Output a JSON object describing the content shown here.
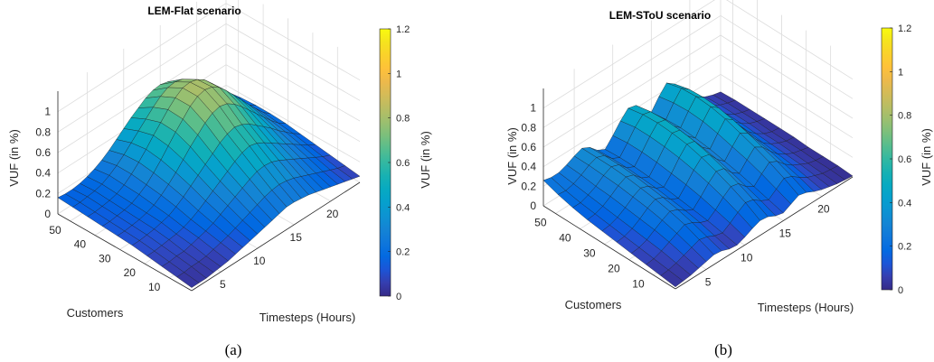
{
  "panels": [
    {
      "id": "a",
      "caption": "(a)",
      "title": "LEM-Flat scenario",
      "zlabel": "VUF (in %)",
      "xlabel": "Customers",
      "ylabel": "Timesteps (Hours)",
      "colorbar_label": "VUF (in %)",
      "z_ticks": [
        "0",
        "0.2",
        "0.4",
        "0.6",
        "0.8",
        "1"
      ],
      "customer_ticks": [
        "50",
        "40",
        "30",
        "20",
        "10"
      ],
      "hour_ticks": [
        "5",
        "10",
        "15",
        "20"
      ],
      "colorbar_ticks": [
        "0",
        "0.2",
        "0.4",
        "0.6",
        "0.8",
        "1",
        "1.2"
      ]
    },
    {
      "id": "b",
      "caption": "(b)",
      "title": "LEM-SToU scenario",
      "zlabel": "VUF (in %)",
      "xlabel": "Customers",
      "ylabel": "Timesteps (Hours)",
      "colorbar_label": "VUF (in %)",
      "z_ticks": [
        "0",
        "0.2",
        "0.4",
        "0.6",
        "0.8",
        "1"
      ],
      "customer_ticks": [
        "50",
        "40",
        "30",
        "20",
        "10"
      ],
      "hour_ticks": [
        "5",
        "10",
        "15",
        "20"
      ],
      "colorbar_ticks": [
        "0",
        "0.2",
        "0.4",
        "0.6",
        "0.8",
        "1",
        "1.2"
      ]
    }
  ],
  "chart_data": [
    {
      "type": "surface",
      "title": "LEM-Flat scenario",
      "xlabel": "Customers",
      "ylabel": "Timesteps (Hours)",
      "zlabel": "VUF (in %)",
      "customers_range": [
        1,
        55
      ],
      "hours_range": [
        1,
        24
      ],
      "zlim": [
        0,
        1.2
      ],
      "colormap": "parula",
      "colorbar_range": [
        0,
        1.2
      ],
      "hours": [
        1,
        2,
        3,
        4,
        5,
        6,
        7,
        8,
        9,
        10,
        11,
        12,
        13,
        14,
        15,
        16,
        17,
        18,
        19,
        20,
        21,
        22,
        23,
        24
      ],
      "customers": [
        1,
        7,
        13,
        19,
        25,
        31,
        37,
        43,
        49,
        55
      ],
      "vuf": [
        [
          0.03,
          0.03,
          0.03,
          0.04,
          0.05,
          0.06,
          0.08,
          0.1,
          0.12,
          0.14,
          0.16,
          0.18,
          0.2,
          0.22,
          0.22,
          0.21,
          0.2,
          0.18,
          0.16,
          0.14,
          0.12,
          0.1,
          0.08,
          0.06
        ],
        [
          0.05,
          0.05,
          0.06,
          0.06,
          0.07,
          0.09,
          0.11,
          0.13,
          0.16,
          0.19,
          0.22,
          0.25,
          0.28,
          0.3,
          0.31,
          0.3,
          0.28,
          0.25,
          0.22,
          0.19,
          0.16,
          0.13,
          0.1,
          0.08
        ],
        [
          0.07,
          0.07,
          0.08,
          0.08,
          0.1,
          0.12,
          0.14,
          0.17,
          0.21,
          0.25,
          0.29,
          0.33,
          0.37,
          0.4,
          0.41,
          0.4,
          0.37,
          0.33,
          0.29,
          0.25,
          0.21,
          0.17,
          0.13,
          0.1
        ],
        [
          0.09,
          0.09,
          0.1,
          0.11,
          0.12,
          0.14,
          0.17,
          0.21,
          0.26,
          0.31,
          0.36,
          0.41,
          0.46,
          0.5,
          0.52,
          0.5,
          0.46,
          0.41,
          0.36,
          0.31,
          0.26,
          0.21,
          0.16,
          0.12
        ],
        [
          0.11,
          0.11,
          0.12,
          0.13,
          0.15,
          0.17,
          0.21,
          0.26,
          0.32,
          0.38,
          0.44,
          0.5,
          0.56,
          0.6,
          0.62,
          0.6,
          0.56,
          0.5,
          0.44,
          0.38,
          0.31,
          0.25,
          0.19,
          0.14
        ],
        [
          0.12,
          0.12,
          0.13,
          0.14,
          0.16,
          0.19,
          0.24,
          0.3,
          0.37,
          0.45,
          0.53,
          0.6,
          0.67,
          0.72,
          0.74,
          0.72,
          0.67,
          0.6,
          0.52,
          0.44,
          0.36,
          0.28,
          0.21,
          0.16
        ],
        [
          0.13,
          0.13,
          0.14,
          0.15,
          0.17,
          0.21,
          0.26,
          0.33,
          0.41,
          0.5,
          0.59,
          0.67,
          0.75,
          0.8,
          0.82,
          0.8,
          0.75,
          0.67,
          0.58,
          0.49,
          0.4,
          0.31,
          0.23,
          0.17
        ],
        [
          0.14,
          0.14,
          0.15,
          0.16,
          0.18,
          0.22,
          0.28,
          0.35,
          0.43,
          0.52,
          0.6,
          0.68,
          0.75,
          0.8,
          0.81,
          0.79,
          0.74,
          0.66,
          0.57,
          0.48,
          0.39,
          0.3,
          0.22,
          0.17
        ],
        [
          0.15,
          0.15,
          0.16,
          0.17,
          0.19,
          0.23,
          0.28,
          0.34,
          0.41,
          0.48,
          0.55,
          0.62,
          0.68,
          0.72,
          0.73,
          0.71,
          0.66,
          0.59,
          0.51,
          0.43,
          0.35,
          0.27,
          0.2,
          0.16
        ],
        [
          0.16,
          0.15,
          0.15,
          0.16,
          0.18,
          0.21,
          0.25,
          0.3,
          0.36,
          0.42,
          0.48,
          0.53,
          0.58,
          0.61,
          0.62,
          0.6,
          0.56,
          0.5,
          0.43,
          0.36,
          0.29,
          0.23,
          0.18,
          0.14
        ]
      ]
    },
    {
      "type": "surface",
      "title": "LEM-SToU scenario",
      "xlabel": "Customers",
      "ylabel": "Timesteps (Hours)",
      "zlabel": "VUF (in %)",
      "customers_range": [
        1,
        55
      ],
      "hours_range": [
        1,
        24
      ],
      "zlim": [
        0,
        1.2
      ],
      "colormap": "parula",
      "colorbar_range": [
        0,
        1.2
      ],
      "hours": [
        1,
        2,
        3,
        4,
        5,
        6,
        7,
        8,
        9,
        10,
        11,
        12,
        13,
        14,
        15,
        16,
        17,
        18,
        19,
        20,
        21,
        22,
        23,
        24
      ],
      "customers": [
        1,
        7,
        13,
        19,
        25,
        31,
        37,
        43,
        49,
        55
      ],
      "vuf": [
        [
          0.02,
          0.03,
          0.04,
          0.06,
          0.08,
          0.1,
          0.09,
          0.06,
          0.05,
          0.08,
          0.12,
          0.15,
          0.14,
          0.1,
          0.08,
          0.12,
          0.16,
          0.14,
          0.1,
          0.07,
          0.05,
          0.03,
          0.02,
          0.01
        ],
        [
          0.04,
          0.05,
          0.07,
          0.1,
          0.13,
          0.16,
          0.14,
          0.1,
          0.08,
          0.13,
          0.19,
          0.24,
          0.22,
          0.16,
          0.12,
          0.18,
          0.24,
          0.21,
          0.15,
          0.1,
          0.07,
          0.04,
          0.03,
          0.02
        ],
        [
          0.06,
          0.07,
          0.1,
          0.14,
          0.18,
          0.22,
          0.19,
          0.14,
          0.11,
          0.17,
          0.25,
          0.31,
          0.29,
          0.21,
          0.16,
          0.24,
          0.31,
          0.27,
          0.19,
          0.13,
          0.09,
          0.05,
          0.03,
          0.02
        ],
        [
          0.08,
          0.09,
          0.12,
          0.17,
          0.22,
          0.26,
          0.23,
          0.17,
          0.13,
          0.21,
          0.3,
          0.37,
          0.35,
          0.26,
          0.2,
          0.29,
          0.37,
          0.32,
          0.23,
          0.15,
          0.1,
          0.06,
          0.04,
          0.02
        ],
        [
          0.1,
          0.11,
          0.14,
          0.19,
          0.25,
          0.29,
          0.26,
          0.19,
          0.15,
          0.24,
          0.34,
          0.42,
          0.4,
          0.3,
          0.23,
          0.33,
          0.42,
          0.37,
          0.26,
          0.17,
          0.11,
          0.07,
          0.04,
          0.03
        ],
        [
          0.12,
          0.13,
          0.16,
          0.21,
          0.27,
          0.31,
          0.28,
          0.21,
          0.17,
          0.26,
          0.37,
          0.46,
          0.44,
          0.33,
          0.26,
          0.37,
          0.47,
          0.41,
          0.29,
          0.19,
          0.12,
          0.07,
          0.04,
          0.03
        ],
        [
          0.14,
          0.15,
          0.18,
          0.23,
          0.29,
          0.33,
          0.3,
          0.22,
          0.18,
          0.28,
          0.39,
          0.48,
          0.46,
          0.35,
          0.28,
          0.4,
          0.5,
          0.44,
          0.31,
          0.2,
          0.13,
          0.08,
          0.05,
          0.03
        ],
        [
          0.17,
          0.17,
          0.2,
          0.24,
          0.3,
          0.34,
          0.31,
          0.23,
          0.19,
          0.29,
          0.4,
          0.49,
          0.47,
          0.36,
          0.29,
          0.41,
          0.51,
          0.45,
          0.32,
          0.21,
          0.13,
          0.08,
          0.05,
          0.03
        ],
        [
          0.21,
          0.2,
          0.22,
          0.26,
          0.31,
          0.34,
          0.31,
          0.23,
          0.19,
          0.29,
          0.4,
          0.48,
          0.46,
          0.35,
          0.28,
          0.4,
          0.5,
          0.44,
          0.31,
          0.2,
          0.13,
          0.08,
          0.05,
          0.03
        ],
        [
          0.26,
          0.24,
          0.24,
          0.27,
          0.31,
          0.34,
          0.3,
          0.22,
          0.18,
          0.27,
          0.37,
          0.45,
          0.43,
          0.33,
          0.26,
          0.37,
          0.46,
          0.4,
          0.29,
          0.19,
          0.12,
          0.07,
          0.04,
          0.02
        ]
      ]
    }
  ]
}
